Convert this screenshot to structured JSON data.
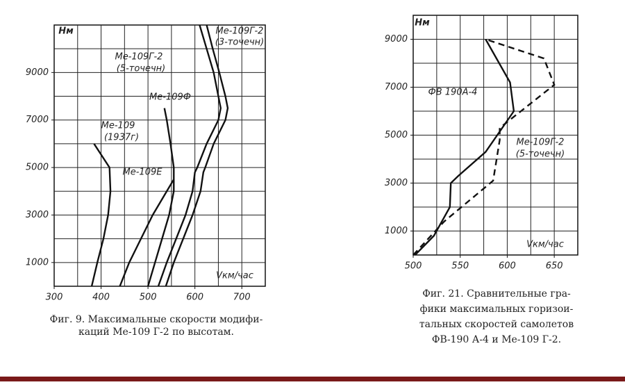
{
  "chart_data": [
    {
      "type": "line",
      "title": "Фиг. 9. Максимальные скорости модифи-",
      "subtitle": "каций Ме-109 Г-2 по высотам.",
      "y_label": "Нм",
      "x_label": "Vкм/час",
      "xlim": [
        300,
        750
      ],
      "ylim": [
        0,
        11000
      ],
      "xticks": [
        300,
        400,
        500,
        600,
        700
      ],
      "yticks": [
        1000,
        3000,
        5000,
        7000,
        9000
      ],
      "xgrid": [
        350,
        400,
        450,
        500,
        550,
        600,
        650,
        700
      ],
      "ygrid": [
        1000,
        2000,
        3000,
        4000,
        5000,
        6000,
        7000,
        8000,
        9000,
        10000
      ],
      "series": [
        {
          "label": [
            "Ме-109Г-2",
            "(3-точечн)"
          ],
          "color": "#111",
          "dash": false,
          "alt": [
            0,
            1000,
            2000,
            3000,
            4000,
            4800,
            5000,
            6000,
            7000,
            7500,
            8000,
            9000,
            10000,
            11000
          ],
          "values": [
            538,
            555,
            575,
            595,
            612,
            618,
            622,
            640,
            665,
            670,
            665,
            652,
            638,
            625
          ]
        },
        {
          "label": [
            "Ме-109Г-2",
            "(5-точечн)"
          ],
          "color": "#111",
          "dash": false,
          "alt": [
            0,
            1000,
            2000,
            3000,
            4000,
            4800,
            5000,
            6000,
            7000,
            7500,
            8000,
            9000,
            10000,
            11000
          ],
          "values": [
            522,
            540,
            560,
            580,
            595,
            600,
            605,
            625,
            650,
            655,
            650,
            640,
            625,
            610
          ]
        },
        {
          "label": [
            "Ме-109Ф"
          ],
          "color": "#111",
          "dash": false,
          "alt": [
            0,
            1000,
            2000,
            3000,
            4000,
            5000,
            6000,
            7000,
            7500
          ],
          "values": [
            500,
            515,
            530,
            545,
            555,
            555,
            548,
            540,
            535
          ]
        },
        {
          "label": [
            "Ме-109",
            "(1937г)"
          ],
          "color": "#111",
          "dash": false,
          "alt": [
            0,
            1000,
            2000,
            3000,
            4000,
            5000,
            6000
          ],
          "values": [
            380,
            392,
            405,
            415,
            420,
            418,
            385
          ]
        },
        {
          "label": [
            "Ме-109Е"
          ],
          "color": "#111",
          "dash": false,
          "alt": [
            0,
            1000,
            2000,
            3000,
            4000,
            4500
          ],
          "values": [
            440,
            460,
            485,
            510,
            540,
            555
          ]
        }
      ]
    },
    {
      "type": "line",
      "title": "Фиг. 21. Сравнительные гра-",
      "caption": [
        "фики максимальных горизои-",
        "тальных скоростей самолетов",
        "ФВ-190 А-4 и Ме-109 Г-2."
      ],
      "y_label": "Нм",
      "x_label": "Vкм/час",
      "xlim": [
        500,
        675
      ],
      "ylim": [
        0,
        10000
      ],
      "xticks": [
        500,
        550,
        600,
        650
      ],
      "yticks": [
        1000,
        3000,
        5000,
        7000,
        9000
      ],
      "xgrid": [
        525,
        550,
        575,
        600,
        625,
        650
      ],
      "ygrid": [
        1000,
        2000,
        3000,
        4000,
        5000,
        6000,
        7000,
        8000,
        9000
      ],
      "series": [
        {
          "label": [
            "ФВ 190А-4"
          ],
          "color": "#111",
          "dash": false,
          "alt": [
            0,
            800,
            2000,
            3000,
            3300,
            4300,
            6000,
            7200,
            9000
          ],
          "values": [
            502,
            522,
            539,
            540,
            548,
            577,
            607,
            603,
            577
          ]
        },
        {
          "label": [
            "Ме-109Г-2",
            "(5-точечн)"
          ],
          "color": "#111",
          "dash": true,
          "alt": [
            0,
            1400,
            3100,
            4800,
            5300,
            7100,
            8200,
            9000
          ],
          "values": [
            500,
            533,
            585,
            592,
            592,
            650,
            639,
            577
          ]
        }
      ]
    }
  ]
}
